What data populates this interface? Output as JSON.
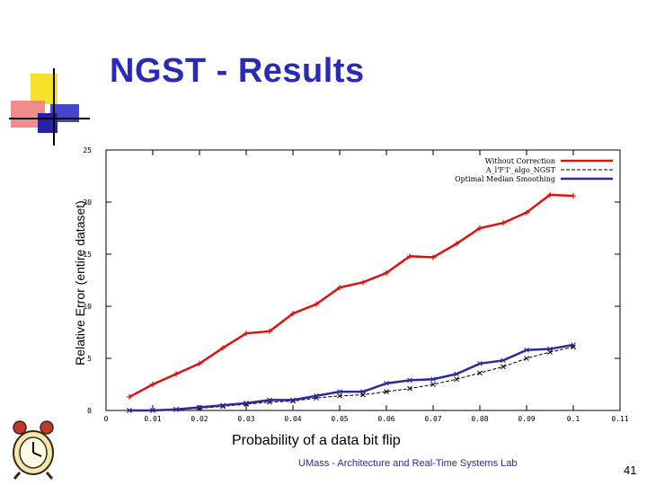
{
  "slide": {
    "title": "NGST - Results",
    "footer": "UMass - Architecture and Real-Time Systems Lab",
    "page_number": "41"
  },
  "icons": [
    "decorative-squares-logo-icon",
    "alarm-clock-icon"
  ],
  "colors": {
    "title": "#2a2ab8",
    "series_without_correction": "#dd1111",
    "series_algo_ngst": "#000000",
    "series_optimal_median_smoothing": "#2a2a9a"
  },
  "chart_data": {
    "type": "line",
    "xlabel": "Probability of a data bit flip",
    "ylabel": "Relative Error (entire dataset)",
    "xlim": [
      0,
      0.11
    ],
    "ylim": [
      0,
      25
    ],
    "x_ticks": [
      "0",
      "0.01",
      "0.02",
      "0.03",
      "0.04",
      "0.05",
      "0.06",
      "0.07",
      "0.08",
      "0.09",
      "0.1",
      "0.11"
    ],
    "y_ticks": [
      "0",
      "5",
      "10",
      "15",
      "20",
      "25"
    ],
    "legend_position": "top-right",
    "grid": false,
    "x": [
      0.005,
      0.01,
      0.015,
      0.02,
      0.025,
      0.03,
      0.035,
      0.04,
      0.045,
      0.05,
      0.055,
      0.06,
      0.065,
      0.07,
      0.075,
      0.08,
      0.085,
      0.09,
      0.095,
      0.1
    ],
    "series": [
      {
        "name": "Without Correction",
        "color": "#dd1111",
        "values": [
          1.3,
          2.5,
          3.5,
          4.5,
          6.0,
          7.4,
          7.6,
          9.3,
          10.2,
          11.8,
          12.3,
          13.2,
          14.8,
          14.7,
          16.0,
          17.5,
          18.0,
          19.0,
          20.7,
          20.6
        ]
      },
      {
        "name": "A_l'F'I'_algo_NGST",
        "color": "#000000",
        "values": [
          0.0,
          0.0,
          0.1,
          0.2,
          0.4,
          0.6,
          0.8,
          0.9,
          1.2,
          1.4,
          1.5,
          1.8,
          2.1,
          2.5,
          3.0,
          3.6,
          4.2,
          5.0,
          5.6,
          6.1
        ]
      },
      {
        "name": "Optimal Median Smoothing",
        "color": "#2a2a9a",
        "values": [
          0.0,
          0.0,
          0.1,
          0.3,
          0.5,
          0.7,
          1.0,
          1.0,
          1.4,
          1.8,
          1.8,
          2.6,
          2.9,
          3.0,
          3.5,
          4.5,
          4.8,
          5.8,
          5.9,
          6.3
        ]
      }
    ]
  }
}
